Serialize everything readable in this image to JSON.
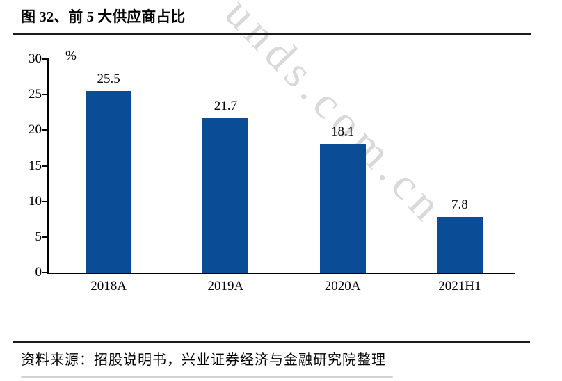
{
  "header": {
    "title": "图 32、前 5 大供应商占比"
  },
  "watermark": {
    "text": "unds.com.cn",
    "color": "#d9d9d9"
  },
  "chart_data": {
    "type": "bar",
    "title": "前 5 大供应商占比",
    "categories": [
      "2018A",
      "2019A",
      "2020A",
      "2021H1"
    ],
    "values": [
      25.5,
      21.7,
      18.1,
      7.8
    ],
    "data_labels": [
      "25.5",
      "21.7",
      "18.1",
      "7.8"
    ],
    "unit_label": "%",
    "xlabel": "",
    "ylabel": "",
    "ylim": [
      0,
      30
    ],
    "yticks": [
      0,
      5,
      10,
      15,
      20,
      25,
      30
    ],
    "grid": false,
    "legend_position": "none",
    "bar_color": "#0a4d96",
    "axis_color": "#000000"
  },
  "footer": {
    "source": "资料来源：招股说明书，兴业证券经济与金融研究院整理"
  }
}
